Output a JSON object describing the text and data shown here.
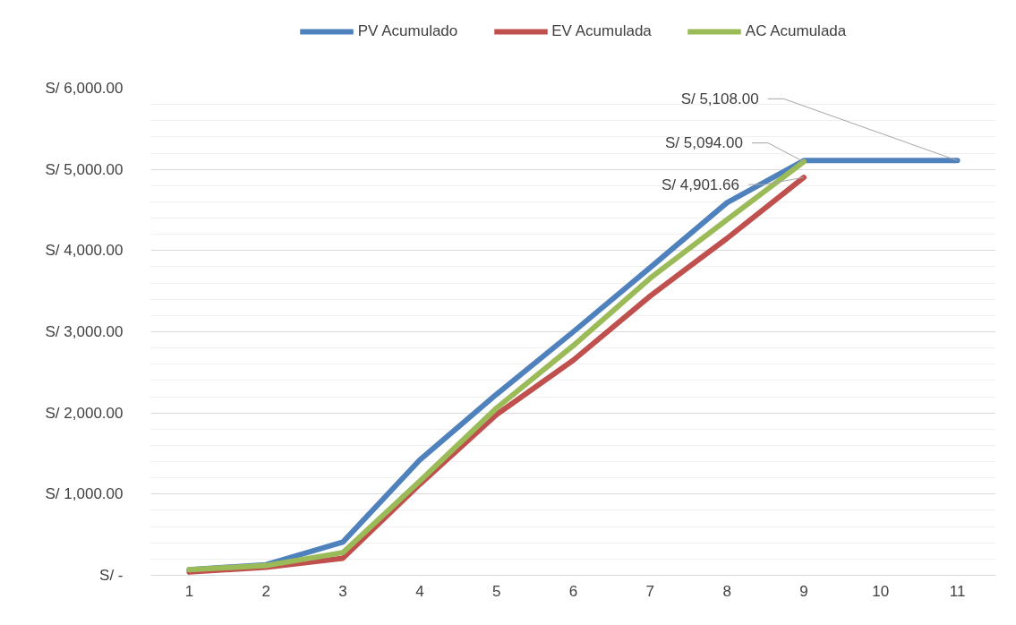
{
  "chart_data": {
    "type": "line",
    "categories": [
      "1",
      "2",
      "3",
      "4",
      "5",
      "6",
      "7",
      "8",
      "9",
      "10",
      "11"
    ],
    "series": [
      {
        "name": "PV Acumulado",
        "color": "#4f81bd",
        "values": [
          70,
          130,
          410,
          1420,
          2230,
          3000,
          3790,
          4590,
          5108,
          5108,
          5108
        ]
      },
      {
        "name": "EV Acumulada",
        "color": "#c0504d",
        "values": [
          40,
          100,
          210,
          1120,
          1980,
          2650,
          3440,
          4150,
          4901.66,
          null,
          null
        ]
      },
      {
        "name": "AC Acumulada",
        "color": "#9bbb59",
        "values": [
          70,
          120,
          280,
          1160,
          2060,
          2830,
          3660,
          4380,
          5094,
          null,
          null
        ]
      }
    ],
    "ylim": [
      0,
      6000
    ],
    "yticks": [
      {
        "value": 0,
        "label": "S/ -"
      },
      {
        "value": 1000,
        "label": "S/ 1,000.00"
      },
      {
        "value": 2000,
        "label": "S/ 2,000.00"
      },
      {
        "value": 3000,
        "label": "S/ 3,000.00"
      },
      {
        "value": 4000,
        "label": "S/ 4,000.00"
      },
      {
        "value": 5000,
        "label": "S/ 5,000.00"
      },
      {
        "value": 6000,
        "label": "S/ 6,000.00"
      }
    ],
    "annotations": [
      {
        "text": "S/ 5,108.00",
        "x": "11",
        "y": 5108
      },
      {
        "text": "S/ 5,094.00",
        "x": "9",
        "y": 5094
      },
      {
        "text": "S/ 4,901.66",
        "x": "9",
        "y": 4901.66
      }
    ],
    "grid": "y",
    "legend": "top",
    "marker": "none",
    "line_style": "solid"
  }
}
